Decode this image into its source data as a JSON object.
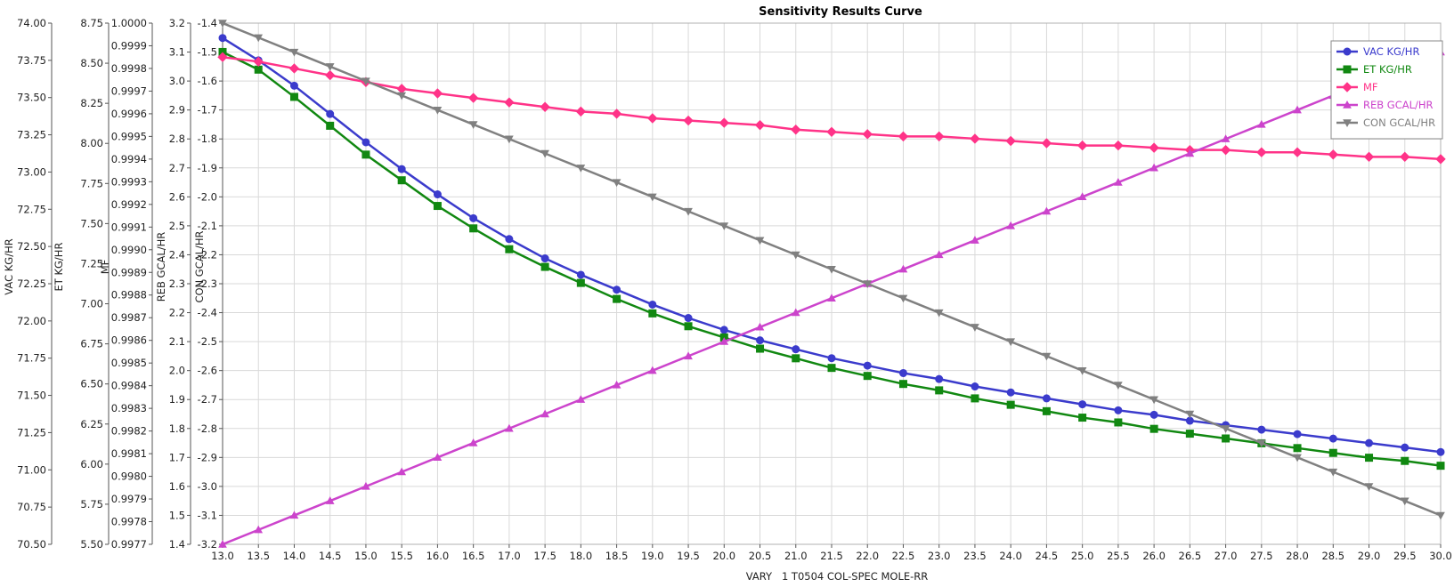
{
  "chart_data": {
    "type": "line",
    "title": "Sensitivity Results Curve",
    "xlabel": "VARY   1 T0504 COL-SPEC MOLE-RR",
    "xlim": [
      13.0,
      30.0
    ],
    "x_ticks": [
      "13.0",
      "13.5",
      "14.0",
      "14.5",
      "15.0",
      "15.5",
      "16.0",
      "16.5",
      "17.0",
      "17.5",
      "18.0",
      "18.5",
      "19.0",
      "19.5",
      "20.0",
      "20.5",
      "21.0",
      "21.5",
      "22.0",
      "22.5",
      "23.0",
      "23.5",
      "24.0",
      "24.5",
      "25.0",
      "25.5",
      "26.0",
      "26.5",
      "27.0",
      "27.5",
      "28.0",
      "28.5",
      "29.0",
      "29.5",
      "30.0"
    ],
    "x": [
      13.0,
      13.5,
      14.0,
      14.5,
      15.0,
      15.5,
      16.0,
      16.5,
      17.0,
      17.5,
      18.0,
      18.5,
      19.0,
      19.5,
      20.0,
      20.5,
      21.0,
      21.5,
      22.0,
      22.5,
      23.0,
      23.5,
      24.0,
      24.5,
      25.0,
      25.5,
      26.0,
      26.5,
      27.0,
      27.5,
      28.0,
      28.5,
      29.0,
      29.5,
      30.0
    ],
    "grid": true,
    "legend_position": "top-right",
    "y_axes": [
      {
        "label": "VAC KG/HR",
        "range": [
          70.5,
          74.0
        ],
        "ticks": [
          "70.50",
          "70.75",
          "71.00",
          "71.25",
          "71.50",
          "71.75",
          "72.00",
          "72.25",
          "72.50",
          "72.75",
          "73.00",
          "73.25",
          "73.50",
          "73.75",
          "74.00"
        ]
      },
      {
        "label": "ET KG/HR",
        "range": [
          5.5,
          8.75
        ],
        "ticks": [
          "5.50",
          "5.75",
          "6.00",
          "6.25",
          "6.50",
          "6.75",
          "7.00",
          "7.25",
          "7.50",
          "7.75",
          "8.00",
          "8.25",
          "8.50",
          "8.75"
        ]
      },
      {
        "label": "MF",
        "range": [
          0.9977,
          1.0
        ],
        "ticks": [
          "0.9977",
          "0.9978",
          "0.9979",
          "0.9980",
          "0.9981",
          "0.9982",
          "0.9983",
          "0.9984",
          "0.9985",
          "0.9986",
          "0.9987",
          "0.9988",
          "0.9989",
          "0.9990",
          "0.9991",
          "0.9992",
          "0.9993",
          "0.9994",
          "0.9995",
          "0.9996",
          "0.9997",
          "0.9998",
          "0.9999",
          "1.0000"
        ]
      },
      {
        "label": "REB GCAL/HR",
        "range": [
          1.4,
          3.2
        ],
        "ticks": [
          "1.4",
          "1.5",
          "1.6",
          "1.7",
          "1.8",
          "1.9",
          "2.0",
          "2.1",
          "2.2",
          "2.3",
          "2.4",
          "2.5",
          "2.6",
          "2.7",
          "2.8",
          "2.9",
          "3.0",
          "3.1",
          "3.2"
        ]
      },
      {
        "label": "CON GCAL/HR",
        "range": [
          -3.2,
          -1.4
        ],
        "ticks": [
          "-3.2",
          "-3.1",
          "-3.0",
          "-2.9",
          "-2.8",
          "-2.7",
          "-2.6",
          "-2.5",
          "-2.4",
          "-2.3",
          "-2.2",
          "-2.1",
          "-2.0",
          "-1.9",
          "-1.8",
          "-1.7",
          "-1.6",
          "-1.5",
          "-1.4"
        ]
      }
    ],
    "series": [
      {
        "name": "VAC KG/HR",
        "axis": 0,
        "color": "#3b3bcc",
        "marker": "circle",
        "values": [
          73.9,
          73.75,
          73.58,
          73.39,
          73.2,
          73.02,
          72.85,
          72.69,
          72.55,
          72.42,
          72.31,
          72.21,
          72.11,
          72.02,
          71.94,
          71.87,
          71.81,
          71.75,
          71.7,
          71.65,
          71.61,
          71.56,
          71.52,
          71.48,
          71.44,
          71.4,
          71.37,
          71.33,
          71.3,
          71.27,
          71.24,
          71.21,
          71.18,
          71.15,
          71.12
        ]
      },
      {
        "name": "ET KG/HR",
        "axis": 1,
        "color": "#118811",
        "marker": "square",
        "values": [
          8.57,
          8.46,
          8.29,
          8.11,
          7.93,
          7.77,
          7.61,
          7.47,
          7.34,
          7.23,
          7.13,
          7.03,
          6.94,
          6.86,
          6.79,
          6.72,
          6.66,
          6.6,
          6.55,
          6.5,
          6.46,
          6.41,
          6.37,
          6.33,
          6.29,
          6.26,
          6.22,
          6.19,
          6.16,
          6.13,
          6.1,
          6.07,
          6.04,
          6.02,
          5.99
        ]
      },
      {
        "name": "MF",
        "axis": 2,
        "color": "#ff3388",
        "marker": "diamond",
        "values": [
          0.99985,
          0.99983,
          0.9998,
          0.99977,
          0.99974,
          0.99971,
          0.99969,
          0.99967,
          0.99965,
          0.99963,
          0.99961,
          0.9996,
          0.99958,
          0.99957,
          0.99956,
          0.99955,
          0.99953,
          0.99952,
          0.99951,
          0.9995,
          0.9995,
          0.99949,
          0.99948,
          0.99947,
          0.99946,
          0.99946,
          0.99945,
          0.99944,
          0.99944,
          0.99943,
          0.99943,
          0.99942,
          0.99941,
          0.99941,
          0.9994
        ]
      },
      {
        "name": "REB GCAL/HR",
        "axis": 3,
        "color": "#cc44cc",
        "marker": "triangle-up",
        "values": [
          1.4,
          1.45,
          1.5,
          1.55,
          1.6,
          1.65,
          1.7,
          1.75,
          1.8,
          1.85,
          1.9,
          1.95,
          2.0,
          2.05,
          2.1,
          2.15,
          2.2,
          2.25,
          2.3,
          2.35,
          2.4,
          2.45,
          2.5,
          2.55,
          2.6,
          2.65,
          2.7,
          2.75,
          2.8,
          2.85,
          2.9,
          2.95,
          3.0,
          3.05,
          3.1
        ]
      },
      {
        "name": "CON GCAL/HR",
        "axis": 4,
        "color": "#808080",
        "marker": "triangle-down",
        "values": [
          -1.4,
          -1.45,
          -1.5,
          -1.55,
          -1.6,
          -1.65,
          -1.7,
          -1.75,
          -1.8,
          -1.85,
          -1.9,
          -1.95,
          -2.0,
          -2.05,
          -2.1,
          -2.15,
          -2.2,
          -2.25,
          -2.3,
          -2.35,
          -2.4,
          -2.45,
          -2.5,
          -2.55,
          -2.6,
          -2.65,
          -2.7,
          -2.75,
          -2.8,
          -2.85,
          -2.9,
          -2.95,
          -3.0,
          -3.05,
          -3.1
        ]
      }
    ]
  }
}
